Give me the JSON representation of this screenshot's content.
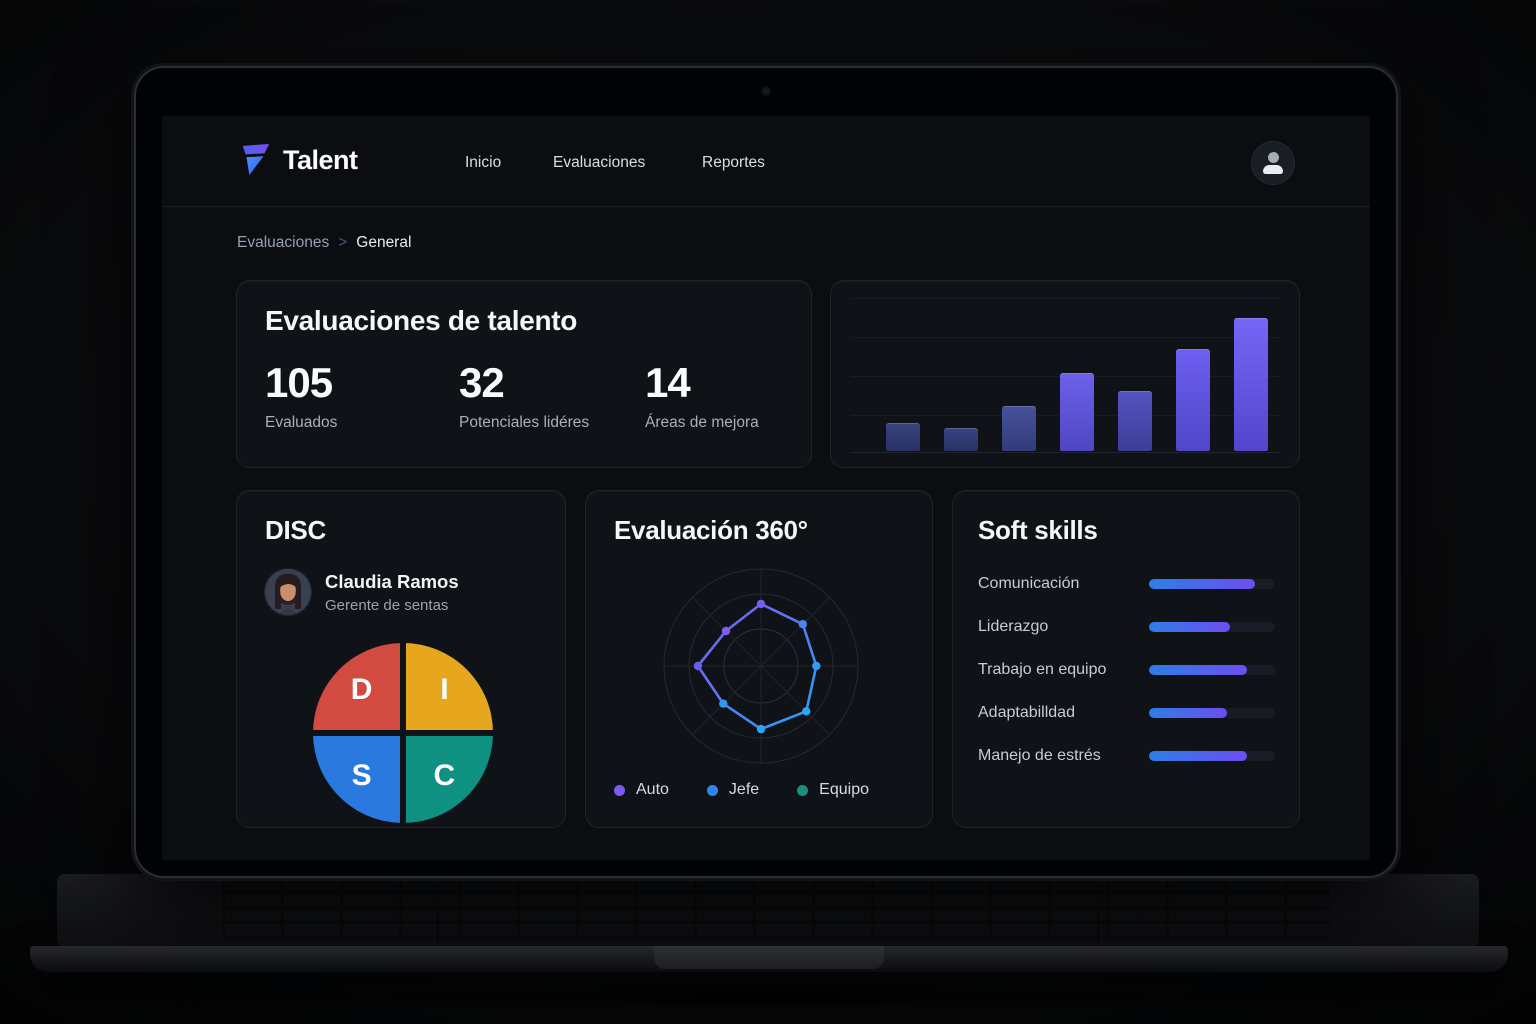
{
  "nav": {
    "brand": "Talent",
    "items": [
      "Inicio",
      "Evaluaciones",
      "Reportes"
    ]
  },
  "breadcrumb": {
    "items": [
      "Evaluaciones",
      "General"
    ],
    "separator": ">"
  },
  "summary": {
    "title": "Evaluaciones de talento",
    "stats": [
      {
        "value": "105",
        "label": "Evaluados"
      },
      {
        "value": "32",
        "label": "Potenciales lidéres"
      },
      {
        "value": "14",
        "label": "Áreas de mejora"
      }
    ]
  },
  "disc": {
    "title": "DISC",
    "person": {
      "name": "Claudia Ramos",
      "role": "Gerente de sentas"
    }
  },
  "eval360": {
    "title": "Evaluación 360°"
  },
  "soft_skills": {
    "title": "Soft skills"
  },
  "chart_data": [
    {
      "type": "bar",
      "id": "activity",
      "title": "",
      "categories": [
        "",
        "",
        "",
        "",
        "",
        "",
        ""
      ],
      "values": [
        18,
        15,
        29,
        50,
        39,
        66,
        86
      ],
      "ylim": [
        0,
        100
      ],
      "grid": true,
      "xlabel": "",
      "ylabel": "",
      "colors": [
        [
          "#3a4480",
          "#283163"
        ],
        [
          "#3a4480",
          "#283163"
        ],
        [
          "#47519c",
          "#323b79"
        ],
        [
          "#6d61ea",
          "#4f46c2"
        ],
        [
          "#5553c0",
          "#3d3e97"
        ],
        [
          "#6e5ff0",
          "#4f46c8"
        ],
        [
          "#7766f6",
          "#5246cc"
        ]
      ]
    },
    {
      "type": "pie",
      "id": "disc",
      "title": "DISC",
      "segments": [
        {
          "label": "I",
          "value": 25,
          "color": "#e6a71f",
          "pos": [
            73,
            26
          ]
        },
        {
          "label": "C",
          "value": 25,
          "color": "#0e9180",
          "pos": [
            73,
            74
          ]
        },
        {
          "label": "S",
          "value": 25,
          "color": "#2979df",
          "pos": [
            27,
            74
          ]
        },
        {
          "label": "D",
          "value": 25,
          "color": "#d14b41",
          "pos": [
            27,
            26
          ]
        }
      ]
    },
    {
      "type": "scatter",
      "id": "eval360",
      "title": "Evaluación 360°",
      "subtype": "radar",
      "axes": 8,
      "max": 100,
      "series": [
        {
          "name": "Auto",
          "color": "#7c5cf0"
        },
        {
          "name": "Jefe",
          "color": "#2e87ee"
        },
        {
          "name": "Equipo",
          "color": "#17917e"
        }
      ],
      "polygon": {
        "values": [
          64,
          61,
          57,
          66,
          65,
          55,
          65,
          51
        ],
        "stroke": [
          "#8157f2",
          "#27a3f2"
        ],
        "dot_colors": [
          "#7c5cf0",
          "#4b85f0",
          "#2f9df2",
          "#2ba6f4",
          "#2ba6f4",
          "#2f9aef",
          "#6b5af0",
          "#7e5cf2"
        ]
      },
      "grid_radii": [
        97,
        72,
        37
      ],
      "legend_position": "bottom"
    },
    {
      "type": "bar",
      "id": "soft_skills",
      "orientation": "horizontal",
      "title": "Soft skills",
      "categories": [
        "Comunicación",
        "Liderazgo",
        "Trabajo en equipo",
        "Adaptabilldad",
        "Manejo de estrés"
      ],
      "values": [
        84,
        64,
        78,
        62,
        78
      ],
      "xlim": [
        0,
        100
      ],
      "bar_gradient": [
        "#2d7ee6",
        "#6d4ef2"
      ],
      "track_color": "#171c26"
    }
  ]
}
